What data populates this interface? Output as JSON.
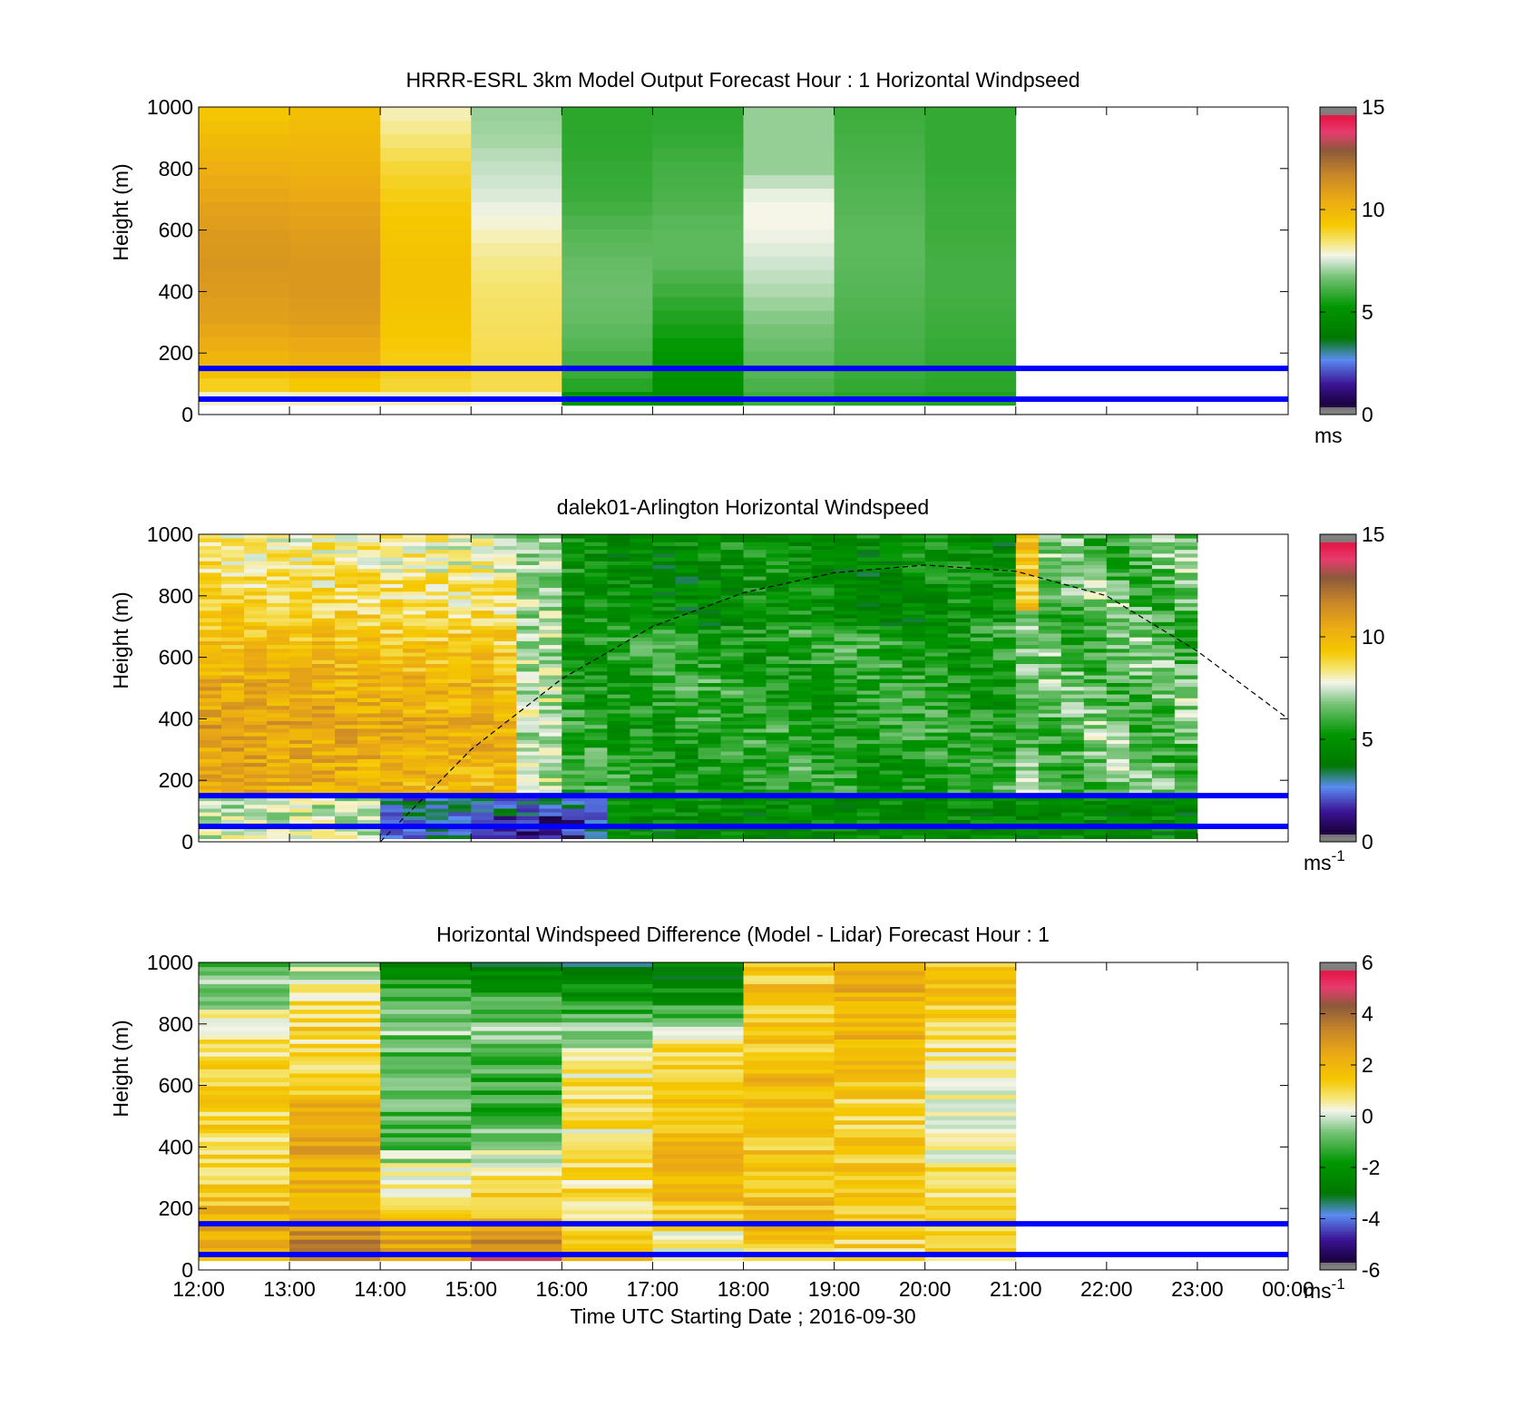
{
  "chart_data": [
    {
      "type": "heatmap",
      "title": "HRRR-ESRL 3km Model Output   Forecast Hour : 1 Horizontal Windpseed",
      "ylabel": "Height (m)",
      "xlabel": "",
      "ylim": [
        0,
        1000
      ],
      "yticks": [
        "0",
        "200",
        "400",
        "600",
        "800",
        "1000"
      ],
      "xlim_hours": [
        12,
        24
      ],
      "data_extent_hours": [
        12,
        21
      ],
      "colorbar": {
        "range": [
          0,
          15
        ],
        "ticks": [
          "0",
          "5",
          "10",
          "15"
        ],
        "unit": "ms"
      },
      "reference_lines_m": [
        150,
        50
      ],
      "mode": "model",
      "columns": [
        {
          "hour": 12,
          "speeds": [
            6.5,
            9.2,
            10.2,
            10.8,
            11.0,
            11.2,
            11.0,
            10.7,
            10.3,
            9.8,
            9.3
          ]
        },
        {
          "hour": 13,
          "speeds": [
            6.5,
            9.4,
            10.4,
            10.9,
            11.1,
            11.1,
            10.9,
            10.6,
            10.2,
            9.9,
            9.6
          ]
        },
        {
          "hour": 14,
          "speeds": [
            7.0,
            9.0,
            9.2,
            9.4,
            9.5,
            9.5,
            9.4,
            9.2,
            8.9,
            8.4,
            8.0
          ]
        },
        {
          "hour": 15,
          "speeds": [
            6.8,
            8.8,
            8.7,
            8.6,
            8.5,
            8.3,
            8.0,
            7.6,
            7.4,
            7.1,
            7.0
          ]
        },
        {
          "hour": 16,
          "speeds": [
            4.3,
            5.8,
            6.2,
            6.5,
            6.6,
            6.5,
            6.3,
            6.0,
            5.9,
            5.8,
            5.8
          ]
        },
        {
          "hour": 17,
          "speeds": [
            4.5,
            5.0,
            5.2,
            5.6,
            6.0,
            6.4,
            6.4,
            6.2,
            6.1,
            5.9,
            5.8
          ]
        },
        {
          "hour": 18,
          "speeds": [
            5.8,
            6.2,
            6.5,
            6.8,
            7.2,
            7.5,
            7.8,
            7.8,
            7.0,
            7.0,
            7.0
          ]
        },
        {
          "hour": 19,
          "speeds": [
            5.6,
            5.9,
            6.1,
            6.2,
            6.3,
            6.4,
            6.4,
            6.3,
            6.2,
            6.1,
            6.0
          ]
        },
        {
          "hour": 20,
          "speeds": [
            5.5,
            5.8,
            5.9,
            6.0,
            6.1,
            6.1,
            6.0,
            6.0,
            5.9,
            5.9,
            5.9
          ]
        }
      ]
    },
    {
      "type": "heatmap",
      "title": "dalek01-Arlington  Horizontal Windspeed",
      "ylabel": "Height (m)",
      "xlabel": "",
      "ylim": [
        0,
        1000
      ],
      "yticks": [
        "0",
        "200",
        "400",
        "600",
        "800",
        "1000"
      ],
      "xlim_hours": [
        12,
        24
      ],
      "data_extent_hours": [
        12,
        22.9
      ],
      "colorbar": {
        "range": [
          0,
          15
        ],
        "ticks": [
          "0",
          "5",
          "10",
          "15"
        ],
        "unit": "ms",
        "unit_sup": "-1"
      },
      "reference_lines_m": [
        150,
        50
      ],
      "mode": "lidar",
      "boundary_layer_curve": [
        {
          "hour": 14.0,
          "height": 0
        },
        {
          "hour": 15.0,
          "height": 300
        },
        {
          "hour": 16.0,
          "height": 530
        },
        {
          "hour": 17.0,
          "height": 700
        },
        {
          "hour": 18.0,
          "height": 810
        },
        {
          "hour": 19.0,
          "height": 875
        },
        {
          "hour": 20.0,
          "height": 900
        },
        {
          "hour": 21.0,
          "height": 880
        },
        {
          "hour": 22.0,
          "height": 800
        },
        {
          "hour": 23.0,
          "height": 620
        },
        {
          "hour": 24.0,
          "height": 400
        }
      ]
    },
    {
      "type": "heatmap",
      "title": "Horizontal Windspeed Difference (Model - Lidar) Forecast Hour : 1",
      "ylabel": "Height (m)",
      "xlabel": "Time UTC  Starting Date ; 2016-09-30",
      "xticks": [
        "12:00",
        "13:00",
        "14:00",
        "15:00",
        "16:00",
        "17:00",
        "18:00",
        "19:00",
        "20:00",
        "21:00",
        "22:00",
        "23:00",
        "00:00"
      ],
      "ylim": [
        0,
        1000
      ],
      "yticks": [
        "0",
        "200",
        "400",
        "600",
        "800",
        "1000"
      ],
      "xlim_hours": [
        12,
        24
      ],
      "data_extent_hours": [
        12,
        21
      ],
      "colorbar": {
        "range": [
          -6,
          6
        ],
        "ticks": [
          "-6",
          "-4",
          "-2",
          "0",
          "2",
          "4",
          "6"
        ],
        "unit": "ms",
        "unit_sup": "-1"
      },
      "reference_lines_m": [
        150,
        50
      ],
      "mode": "diff",
      "columns": [
        {
          "hour": 12,
          "diffs": [
            1.5,
            2.5,
            1.8,
            1.2,
            1.0,
            1.3,
            1.2,
            0.8,
            0.5,
            -0.5,
            -1.0
          ]
        },
        {
          "hour": 13,
          "diffs": [
            3.0,
            3.5,
            2.5,
            2.0,
            2.5,
            2.2,
            1.5,
            1.0,
            1.2,
            0.5,
            -0.5
          ]
        },
        {
          "hour": 14,
          "diffs": [
            2.0,
            2.5,
            1.2,
            0.5,
            -0.8,
            -1.0,
            -1.2,
            -0.8,
            -0.6,
            -1.4,
            -2.4
          ]
        },
        {
          "hour": 15,
          "diffs": [
            4.8,
            3.0,
            1.5,
            0.5,
            -0.3,
            -1.2,
            -1.4,
            -1.2,
            -0.5,
            -1.5,
            -2.6
          ]
        },
        {
          "hour": 16,
          "diffs": [
            2.5,
            1.5,
            1.0,
            0.8,
            0.8,
            0.8,
            0.9,
            0.3,
            -1.0,
            -2.0,
            -3.0
          ]
        },
        {
          "hour": 17,
          "diffs": [
            -0.2,
            0.5,
            1.5,
            2.0,
            2.0,
            1.5,
            1.0,
            1.2,
            -0.8,
            -2.0,
            -2.8
          ]
        },
        {
          "hour": 18,
          "diffs": [
            1.0,
            1.5,
            1.8,
            1.5,
            1.6,
            1.5,
            1.8,
            1.5,
            1.4,
            1.6,
            1.5
          ]
        },
        {
          "hour": 19,
          "diffs": [
            1.0,
            1.2,
            1.4,
            1.5,
            1.4,
            1.2,
            1.5,
            1.8,
            2.0,
            2.2,
            2.0
          ]
        },
        {
          "hour": 20,
          "diffs": [
            1.0,
            1.2,
            1.4,
            0.8,
            0.6,
            0.3,
            0.0,
            0.8,
            1.3,
            1.5,
            1.3
          ]
        }
      ]
    }
  ]
}
